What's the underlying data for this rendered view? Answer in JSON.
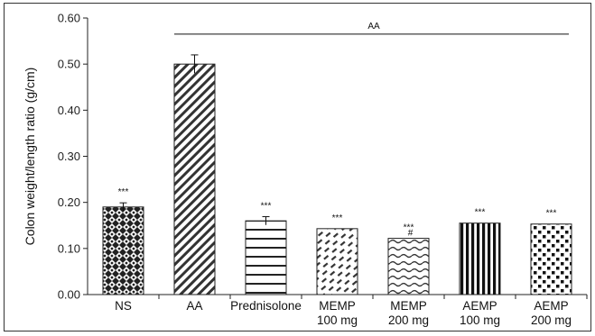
{
  "chart_data": {
    "type": "bar",
    "ylabel": "Colon weight/length ratio (g/cm)",
    "ylim": [
      0,
      0.6
    ],
    "yticks": [
      "0.00",
      "0.10",
      "0.20",
      "0.30",
      "0.40",
      "0.50",
      "0.60"
    ],
    "categories": [
      {
        "line1": "NS",
        "line2": ""
      },
      {
        "line1": "AA",
        "line2": ""
      },
      {
        "line1": "Prednisolone",
        "line2": ""
      },
      {
        "line1": "MEMP",
        "line2": "100 mg"
      },
      {
        "line1": "MEMP",
        "line2": "200 mg"
      },
      {
        "line1": "AEMP",
        "line2": "100 mg"
      },
      {
        "line1": "AEMP",
        "line2": "200 mg"
      }
    ],
    "values": [
      0.19,
      0.5,
      0.16,
      0.143,
      0.122,
      0.155,
      0.153
    ],
    "errors": [
      0.009,
      0.02,
      0.009,
      0,
      0,
      0,
      0
    ],
    "patterns": [
      "crosshatch-diamond",
      "diagonal-stripes",
      "horizontal-stripes",
      "dashed-diagonal",
      "wavy",
      "vertical-stripes",
      "checker-dots"
    ],
    "annotations": [
      "***",
      "",
      "***",
      "***",
      "***",
      "***",
      "***"
    ],
    "secondary_annotations": [
      "",
      "",
      "",
      "",
      "#",
      "",
      ""
    ],
    "bracket_label": "AA",
    "bracket_y": 0.565,
    "grid": false,
    "colors": {
      "bar_stroke": "#222222",
      "fill": "#1a1a1a"
    }
  }
}
